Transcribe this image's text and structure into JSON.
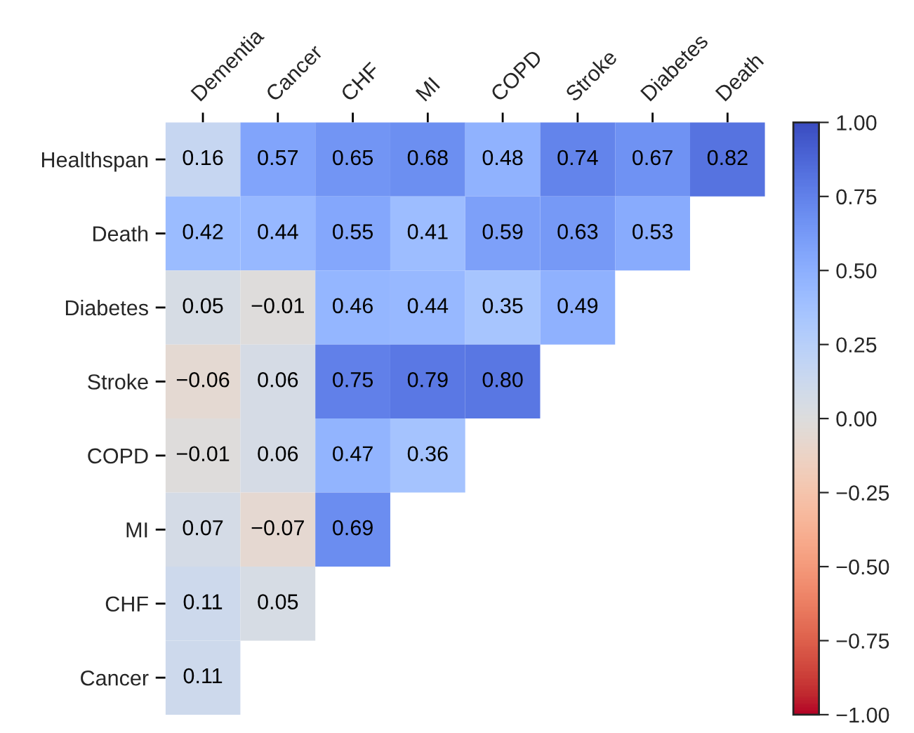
{
  "chart_data": {
    "type": "heatmap",
    "categories": [
      "Dementia",
      "Cancer",
      "CHF",
      "MI",
      "COPD",
      "Stroke",
      "Diabetes",
      "Death"
    ],
    "y_categories": [
      "Healthspan",
      "Death",
      "Diabetes",
      "Stroke",
      "COPD",
      "MI",
      "CHF",
      "Cancer"
    ],
    "cells": [
      [
        0.16,
        0.57,
        0.65,
        0.68,
        0.48,
        0.74,
        0.67,
        0.82
      ],
      [
        0.42,
        0.44,
        0.55,
        0.41,
        0.59,
        0.63,
        0.53,
        null
      ],
      [
        0.05,
        -0.01,
        0.46,
        0.44,
        0.35,
        0.49,
        null,
        null
      ],
      [
        -0.06,
        0.06,
        0.75,
        0.79,
        0.8,
        null,
        null,
        null
      ],
      [
        -0.01,
        0.06,
        0.47,
        0.36,
        null,
        null,
        null,
        null
      ],
      [
        0.07,
        -0.07,
        0.69,
        null,
        null,
        null,
        null,
        null
      ],
      [
        0.11,
        0.05,
        null,
        null,
        null,
        null,
        null,
        null
      ],
      [
        0.11,
        null,
        null,
        null,
        null,
        null,
        null,
        null
      ]
    ],
    "cell_labels": [
      [
        "0.16",
        "0.57",
        "0.65",
        "0.68",
        "0.48",
        "0.74",
        "0.67",
        "0.82"
      ],
      [
        "0.42",
        "0.44",
        "0.55",
        "0.41",
        "0.59",
        "0.63",
        "0.53",
        null
      ],
      [
        "0.05",
        "−0.01",
        "0.46",
        "0.44",
        "0.35",
        "0.49",
        null,
        null
      ],
      [
        "−0.06",
        "0.06",
        "0.75",
        "0.79",
        "0.80",
        null,
        null,
        null
      ],
      [
        "−0.01",
        "0.06",
        "0.47",
        "0.36",
        null,
        null,
        null,
        null
      ],
      [
        "0.07",
        "−0.07",
        "0.69",
        null,
        null,
        null,
        null,
        null
      ],
      [
        "0.11",
        "0.05",
        null,
        null,
        null,
        null,
        null,
        null
      ],
      [
        "0.11",
        null,
        null,
        null,
        null,
        null,
        null,
        null
      ]
    ],
    "clim": [
      -1,
      1
    ],
    "cticks": [
      {
        "value": 1,
        "label": "1.00"
      },
      {
        "value": 0.75,
        "label": "0.75"
      },
      {
        "value": 0.5,
        "label": "0.50"
      },
      {
        "value": 0.25,
        "label": "0.25"
      },
      {
        "value": 0,
        "label": "0.00"
      },
      {
        "value": -0.25,
        "label": "−0.25"
      },
      {
        "value": -0.5,
        "label": "−0.50"
      },
      {
        "value": -0.75,
        "label": "−0.75"
      },
      {
        "value": -1,
        "label": "−1.00"
      }
    ],
    "data_labels": true
  }
}
